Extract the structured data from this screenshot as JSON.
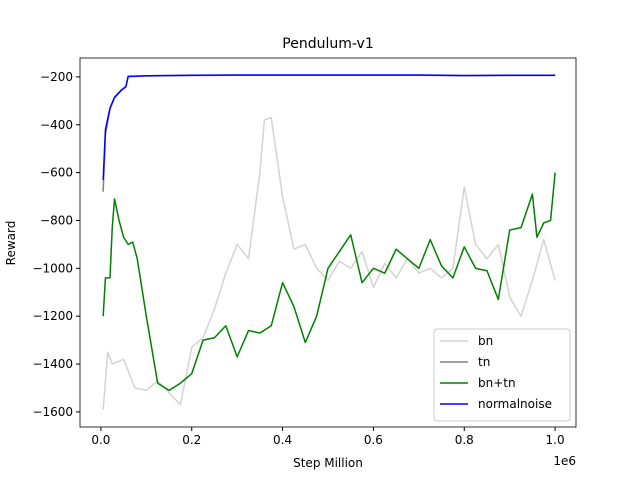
{
  "chart_data": {
    "type": "line",
    "title": "Pendulum-v1",
    "xlabel": "Step Million",
    "ylabel": "Reward",
    "x_offset_label": "1e6",
    "xlim": [
      -0.046,
      1.046
    ],
    "ylim": [
      -1663,
      -121
    ],
    "xticks": [
      {
        "value": 0,
        "label": "0.0"
      },
      0.2,
      0.4,
      0.6,
      0.8,
      {
        "value": 1,
        "label": "1.0"
      }
    ],
    "yticks": [
      {
        "value": -1600,
        "label": "−1600"
      },
      {
        "value": -1400,
        "label": "−1400"
      },
      {
        "value": -1200,
        "label": "−1200"
      },
      {
        "value": -1000,
        "label": "−1000"
      },
      {
        "value": -800,
        "label": "−800"
      },
      {
        "value": -600,
        "label": "−600"
      },
      {
        "value": -400,
        "label": "−400"
      },
      {
        "value": -200,
        "label": "−200"
      }
    ],
    "legend": "lower right",
    "series": [
      {
        "name": "bn",
        "color": "#d3d3d3",
        "x": [
          0.005,
          0.015,
          0.025,
          0.05,
          0.075,
          0.1,
          0.125,
          0.15,
          0.175,
          0.2,
          0.225,
          0.25,
          0.275,
          0.3,
          0.325,
          0.35,
          0.36,
          0.375,
          0.4,
          0.425,
          0.45,
          0.475,
          0.5,
          0.525,
          0.55,
          0.575,
          0.6,
          0.625,
          0.65,
          0.675,
          0.7,
          0.725,
          0.75,
          0.775,
          0.8,
          0.825,
          0.85,
          0.875,
          0.9,
          0.925,
          0.95,
          0.975,
          1.0
        ],
        "values": [
          -1590,
          -1350,
          -1400,
          -1380,
          -1500,
          -1510,
          -1470,
          -1520,
          -1570,
          -1330,
          -1290,
          -1170,
          -1020,
          -900,
          -960,
          -600,
          -380,
          -370,
          -700,
          -920,
          -900,
          -1000,
          -1050,
          -970,
          -1000,
          -930,
          -1080,
          -980,
          -1040,
          -960,
          -1020,
          -1000,
          -1040,
          -1000,
          -660,
          -900,
          -960,
          -900,
          -1120,
          -1200,
          -1050,
          -880,
          -1050
        ]
      },
      {
        "name": "tn",
        "color": "#808080",
        "x": [
          0.005,
          0.01,
          0.02,
          0.03,
          0.045,
          0.055,
          0.06,
          0.1,
          0.2,
          0.3,
          0.4,
          0.5,
          0.6,
          0.7,
          0.8,
          0.9,
          1.0
        ],
        "values": [
          -680,
          -440,
          -335,
          -288,
          -257,
          -242,
          -199,
          -196,
          -194,
          -193,
          -193,
          -193,
          -193,
          -193,
          -195,
          -194,
          -194
        ]
      },
      {
        "name": "bn+tn",
        "color": "#008000",
        "x": [
          0.005,
          0.01,
          0.02,
          0.025,
          0.03,
          0.04,
          0.05,
          0.06,
          0.07,
          0.08,
          0.1,
          0.125,
          0.15,
          0.175,
          0.2,
          0.225,
          0.25,
          0.275,
          0.3,
          0.325,
          0.35,
          0.375,
          0.4,
          0.425,
          0.45,
          0.475,
          0.5,
          0.525,
          0.55,
          0.575,
          0.6,
          0.625,
          0.65,
          0.675,
          0.7,
          0.725,
          0.75,
          0.775,
          0.8,
          0.825,
          0.85,
          0.875,
          0.9,
          0.925,
          0.95,
          0.96,
          0.975,
          0.99,
          1.0
        ],
        "values": [
          -1200,
          -1040,
          -1040,
          -830,
          -710,
          -800,
          -870,
          -900,
          -890,
          -960,
          -1200,
          -1480,
          -1510,
          -1480,
          -1440,
          -1300,
          -1290,
          -1240,
          -1370,
          -1260,
          -1270,
          -1240,
          -1060,
          -1160,
          -1310,
          -1200,
          -1000,
          -930,
          -860,
          -1060,
          -1000,
          -1020,
          -920,
          -960,
          -1000,
          -880,
          -990,
          -1040,
          -910,
          -1000,
          -1010,
          -1130,
          -840,
          -830,
          -690,
          -870,
          -810,
          -800,
          -600
        ]
      },
      {
        "name": "normalnoise",
        "color": "#0000ff",
        "x": [
          0.005,
          0.01,
          0.02,
          0.03,
          0.045,
          0.055,
          0.06,
          0.1,
          0.2,
          0.3,
          0.4,
          0.5,
          0.6,
          0.7,
          0.8,
          0.9,
          1.0
        ],
        "values": [
          -630,
          -420,
          -330,
          -285,
          -255,
          -240,
          -198,
          -195,
          -193,
          -192,
          -192,
          -192,
          -192,
          -192,
          -194,
          -193,
          -193
        ]
      }
    ]
  }
}
